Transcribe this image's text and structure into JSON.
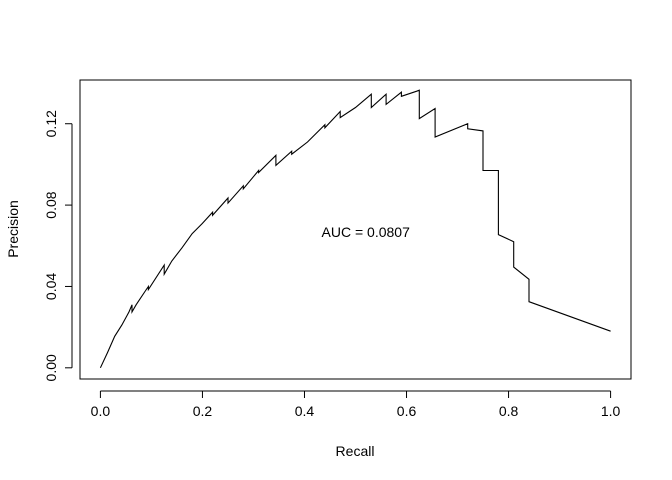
{
  "chart_data": {
    "type": "line",
    "title": "",
    "xlabel": "Recall",
    "ylabel": "Precision",
    "xlim": [
      -0.04,
      1.04
    ],
    "ylim": [
      -0.0055,
      0.1415
    ],
    "xticks": [
      0.0,
      0.2,
      0.4,
      0.6,
      0.8,
      1.0
    ],
    "xtick_labels": [
      "0.0",
      "0.2",
      "0.4",
      "0.6",
      "0.8",
      "1.0"
    ],
    "yticks": [
      0.0,
      0.04,
      0.08,
      0.12
    ],
    "ytick_labels": [
      "0.00",
      "0.04",
      "0.08",
      "0.12"
    ],
    "grid": false,
    "annotation": {
      "text": "AUC  = 0.0807",
      "x": 0.52,
      "y": 0.0668
    },
    "series": [
      {
        "x": [
          0.0,
          0.014,
          0.028,
          0.042,
          0.056,
          0.062,
          0.062,
          0.07,
          0.09,
          0.094,
          0.094,
          0.125,
          0.125,
          0.14,
          0.16,
          0.18,
          0.19,
          0.2,
          0.22,
          0.22,
          0.25,
          0.25,
          0.28,
          0.28,
          0.31,
          0.31,
          0.344,
          0.344,
          0.375,
          0.375,
          0.406,
          0.44,
          0.44,
          0.47,
          0.47,
          0.5,
          0.531,
          0.531,
          0.56,
          0.56,
          0.59,
          0.59,
          0.62,
          0.625,
          0.625,
          0.656,
          0.656,
          0.72,
          0.72,
          0.75,
          0.75,
          0.78,
          0.78,
          0.81,
          0.81,
          0.84,
          0.84,
          1.0
        ],
        "y": [
          0.0,
          0.0075,
          0.0155,
          0.021,
          0.0275,
          0.031,
          0.0275,
          0.031,
          0.0385,
          0.04,
          0.0385,
          0.0505,
          0.046,
          0.0525,
          0.059,
          0.066,
          0.0685,
          0.071,
          0.0765,
          0.075,
          0.0835,
          0.081,
          0.0895,
          0.088,
          0.097,
          0.096,
          0.1045,
          0.0995,
          0.1065,
          0.105,
          0.111,
          0.1195,
          0.118,
          0.126,
          0.123,
          0.128,
          0.1345,
          0.128,
          0.1345,
          0.1295,
          0.1355,
          0.1335,
          0.136,
          0.1365,
          0.1225,
          0.1275,
          0.1135,
          0.12,
          0.1175,
          0.1165,
          0.097,
          0.097,
          0.0655,
          0.062,
          0.0495,
          0.0435,
          0.0325,
          0.018
        ]
      }
    ]
  }
}
